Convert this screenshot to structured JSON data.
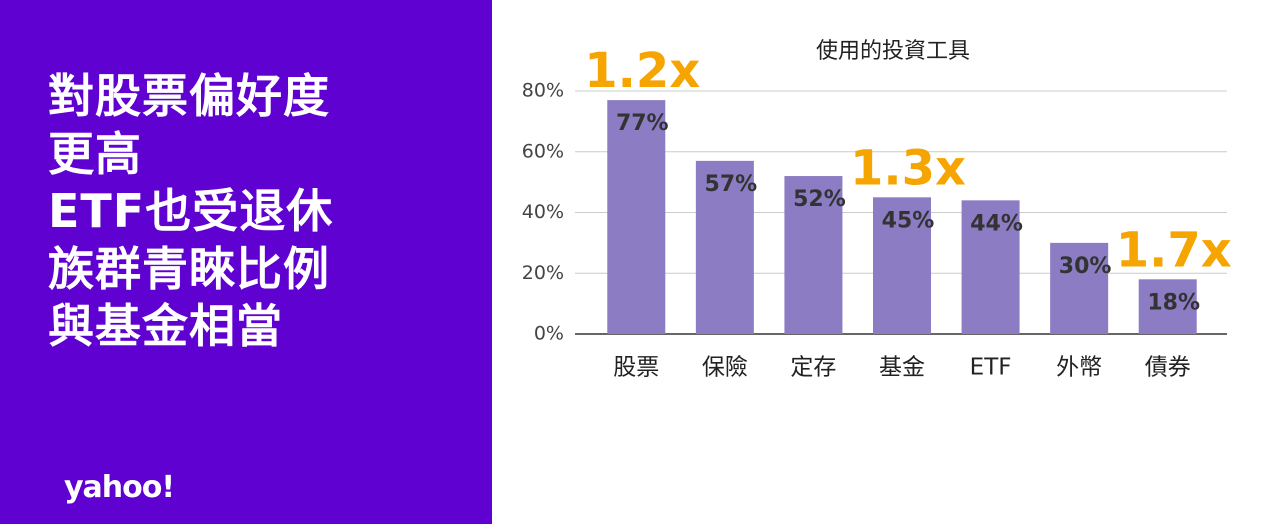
{
  "headline": [
    "對股票偏好度",
    "更高",
    "ETF也受退休",
    "族群青睞比例",
    "與基金相當"
  ],
  "logo": "yahoo!",
  "chart_data": {
    "type": "bar",
    "title": "使用的投資工具",
    "categories": [
      "股票",
      "保險",
      "定存",
      "基金",
      "ETF",
      "外幣",
      "債券"
    ],
    "values": [
      77,
      57,
      52,
      45,
      44,
      30,
      18
    ],
    "value_labels": [
      "77%",
      "57%",
      "52%",
      "45%",
      "44%",
      "30%",
      "18%"
    ],
    "color": "#8b7cc3",
    "ylim": [
      0,
      80
    ],
    "yticks": [
      {
        "value": 0,
        "label": "0%"
      },
      {
        "value": 20,
        "label": "20%"
      },
      {
        "value": 40,
        "label": "40%"
      },
      {
        "value": 60,
        "label": "60%"
      },
      {
        "value": 80,
        "label": "80%"
      }
    ],
    "grid": true,
    "annotations": [
      {
        "text": "1.2x",
        "category": "股票"
      },
      {
        "text": "1.3x",
        "category": "基金"
      },
      {
        "text": "1.7x",
        "category": "債券"
      }
    ]
  }
}
